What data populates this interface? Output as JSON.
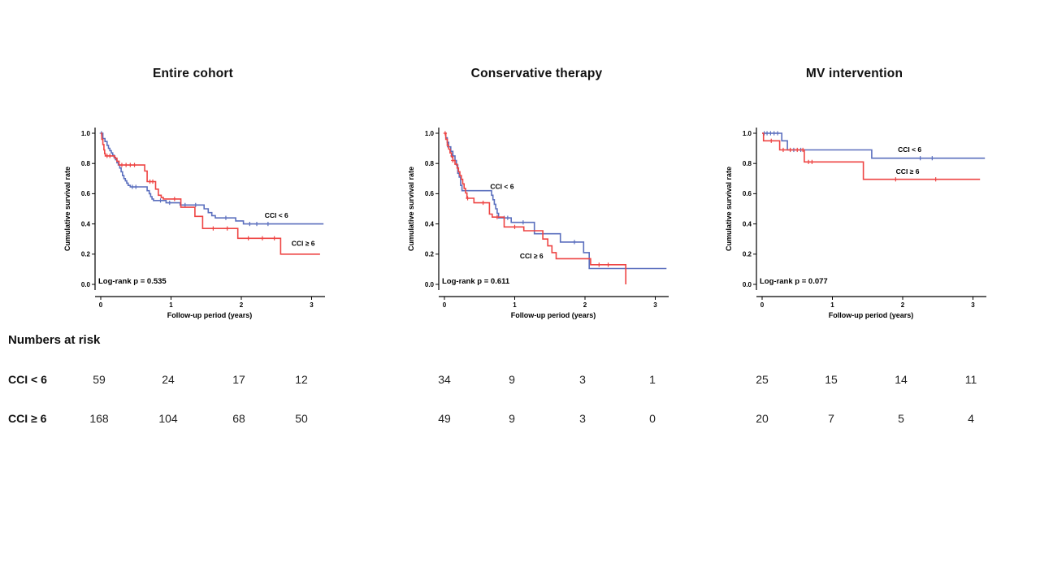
{
  "figure": {
    "background": "#ffffff",
    "ylabel": "Cumulative survival rate",
    "xlabel": "Follow-up period (years)",
    "x_tick_labels": [
      "0",
      "1",
      "2",
      "3"
    ],
    "y_tick_labels": [
      "0.0",
      "0.2",
      "0.4",
      "0.6",
      "0.8",
      "1.0"
    ],
    "colors": {
      "cci_lt6": "#5B6FBE",
      "cci_ge6": "#EE4443",
      "axis": "#000000"
    }
  },
  "chart_data": [
    {
      "type": "line",
      "subtype": "kaplan-meier-step",
      "title": "Entire cohort",
      "xlabel": "Follow-up period (years)",
      "ylabel": "Cumulative survival rate",
      "xlim": [
        0,
        3.2
      ],
      "ylim": [
        0.0,
        1.0
      ],
      "x_ticks": [
        0,
        1,
        2,
        3
      ],
      "y_ticks": [
        0.0,
        0.2,
        0.4,
        0.6,
        0.8,
        1.0
      ],
      "annotation": "Log-rank p = 0.535",
      "legend_position": "inline-right",
      "grid": false,
      "series": [
        {
          "name": "CCI < 6",
          "color": "#5B6FBE",
          "label_pos": [
            2.5,
            0.455
          ],
          "steps": [
            [
              0,
              1.0
            ],
            [
              0.03,
              0.965
            ],
            [
              0.06,
              0.945
            ],
            [
              0.09,
              0.92
            ],
            [
              0.11,
              0.9
            ],
            [
              0.13,
              0.885
            ],
            [
              0.15,
              0.87
            ],
            [
              0.17,
              0.855
            ],
            [
              0.19,
              0.84
            ],
            [
              0.21,
              0.825
            ],
            [
              0.23,
              0.805
            ],
            [
              0.25,
              0.79
            ],
            [
              0.27,
              0.77
            ],
            [
              0.29,
              0.745
            ],
            [
              0.31,
              0.72
            ],
            [
              0.33,
              0.7
            ],
            [
              0.35,
              0.685
            ],
            [
              0.37,
              0.67
            ],
            [
              0.39,
              0.655
            ],
            [
              0.42,
              0.645
            ],
            [
              0.66,
              0.62
            ],
            [
              0.69,
              0.6
            ],
            [
              0.71,
              0.58
            ],
            [
              0.73,
              0.565
            ],
            [
              0.75,
              0.555
            ],
            [
              0.93,
              0.54
            ],
            [
              1.13,
              0.525
            ],
            [
              1.47,
              0.5
            ],
            [
              1.53,
              0.475
            ],
            [
              1.58,
              0.455
            ],
            [
              1.63,
              0.44
            ],
            [
              1.92,
              0.42
            ],
            [
              2.03,
              0.4
            ],
            [
              3.17,
              0.4
            ]
          ],
          "censors": [
            [
              0.01,
              1.0
            ],
            [
              0.45,
              0.645
            ],
            [
              0.5,
              0.645
            ],
            [
              0.85,
              0.555
            ],
            [
              0.98,
              0.54
            ],
            [
              1.2,
              0.525
            ],
            [
              1.35,
              0.525
            ],
            [
              1.78,
              0.44
            ],
            [
              2.12,
              0.4
            ],
            [
              2.22,
              0.4
            ],
            [
              2.38,
              0.4
            ]
          ]
        },
        {
          "name": "CCI ≥ 6",
          "color": "#EE4443",
          "label_pos": [
            2.88,
            0.27
          ],
          "steps": [
            [
              0,
              1.0
            ],
            [
              0.015,
              0.96
            ],
            [
              0.03,
              0.925
            ],
            [
              0.045,
              0.89
            ],
            [
              0.055,
              0.865
            ],
            [
              0.065,
              0.85
            ],
            [
              0.2,
              0.835
            ],
            [
              0.23,
              0.815
            ],
            [
              0.26,
              0.79
            ],
            [
              0.625,
              0.75
            ],
            [
              0.66,
              0.68
            ],
            [
              0.78,
              0.63
            ],
            [
              0.82,
              0.59
            ],
            [
              0.86,
              0.575
            ],
            [
              0.89,
              0.565
            ],
            [
              1.14,
              0.51
            ],
            [
              1.34,
              0.45
            ],
            [
              1.45,
              0.37
            ],
            [
              1.95,
              0.305
            ],
            [
              2.56,
              0.2
            ],
            [
              3.12,
              0.2
            ]
          ],
          "censors": [
            [
              0.09,
              0.85
            ],
            [
              0.13,
              0.85
            ],
            [
              0.3,
              0.79
            ],
            [
              0.36,
              0.79
            ],
            [
              0.42,
              0.79
            ],
            [
              0.48,
              0.79
            ],
            [
              0.7,
              0.68
            ],
            [
              0.74,
              0.68
            ],
            [
              1.05,
              0.565
            ],
            [
              1.6,
              0.37
            ],
            [
              1.8,
              0.37
            ],
            [
              2.1,
              0.305
            ],
            [
              2.3,
              0.305
            ],
            [
              2.47,
              0.305
            ]
          ]
        }
      ]
    },
    {
      "type": "line",
      "subtype": "kaplan-meier-step",
      "title": "Conservative therapy",
      "xlabel": "Follow-up period (years)",
      "ylabel": "Cumulative survival rate",
      "xlim": [
        0,
        3.2
      ],
      "ylim": [
        0.0,
        1.0
      ],
      "x_ticks": [
        0,
        1,
        2,
        3
      ],
      "y_ticks": [
        0.0,
        0.2,
        0.4,
        0.6,
        0.8,
        1.0
      ],
      "annotation": "Log-rank p = 0.611",
      "legend_position": "inline",
      "grid": false,
      "series": [
        {
          "name": "CCI < 6",
          "color": "#5B6FBE",
          "label_pos": [
            0.82,
            0.645
          ],
          "steps": [
            [
              0,
              1.0
            ],
            [
              0.02,
              0.97
            ],
            [
              0.04,
              0.94
            ],
            [
              0.06,
              0.91
            ],
            [
              0.09,
              0.88
            ],
            [
              0.12,
              0.85
            ],
            [
              0.15,
              0.82
            ],
            [
              0.17,
              0.79
            ],
            [
              0.19,
              0.735
            ],
            [
              0.21,
              0.71
            ],
            [
              0.23,
              0.655
            ],
            [
              0.25,
              0.62
            ],
            [
              0.67,
              0.59
            ],
            [
              0.69,
              0.56
            ],
            [
              0.71,
              0.53
            ],
            [
              0.73,
              0.5
            ],
            [
              0.75,
              0.47
            ],
            [
              0.77,
              0.44
            ],
            [
              0.95,
              0.41
            ],
            [
              1.28,
              0.335
            ],
            [
              1.65,
              0.28
            ],
            [
              1.98,
              0.21
            ],
            [
              2.06,
              0.105
            ],
            [
              3.16,
              0.105
            ]
          ],
          "censors": [
            [
              0.06,
              0.91
            ],
            [
              0.11,
              0.85
            ],
            [
              0.85,
              0.44
            ],
            [
              0.9,
              0.44
            ],
            [
              1.12,
              0.41
            ],
            [
              1.85,
              0.28
            ]
          ]
        },
        {
          "name": "CCI ≥ 6",
          "color": "#EE4443",
          "label_pos": [
            1.24,
            0.185
          ],
          "steps": [
            [
              0,
              1.0
            ],
            [
              0.02,
              0.96
            ],
            [
              0.04,
              0.92
            ],
            [
              0.06,
              0.895
            ],
            [
              0.08,
              0.87
            ],
            [
              0.1,
              0.845
            ],
            [
              0.12,
              0.82
            ],
            [
              0.15,
              0.795
            ],
            [
              0.18,
              0.77
            ],
            [
              0.2,
              0.745
            ],
            [
              0.22,
              0.72
            ],
            [
              0.24,
              0.695
            ],
            [
              0.26,
              0.665
            ],
            [
              0.28,
              0.635
            ],
            [
              0.3,
              0.605
            ],
            [
              0.32,
              0.57
            ],
            [
              0.42,
              0.54
            ],
            [
              0.64,
              0.465
            ],
            [
              0.68,
              0.445
            ],
            [
              0.85,
              0.38
            ],
            [
              1.13,
              0.355
            ],
            [
              1.4,
              0.3
            ],
            [
              1.47,
              0.255
            ],
            [
              1.53,
              0.21
            ],
            [
              1.59,
              0.17
            ],
            [
              2.08,
              0.13
            ],
            [
              2.58,
              0.0
            ]
          ],
          "censors": [
            [
              0.01,
              1.0
            ],
            [
              0.12,
              0.82
            ],
            [
              0.33,
              0.57
            ],
            [
              0.55,
              0.54
            ],
            [
              0.75,
              0.445
            ],
            [
              1.0,
              0.38
            ],
            [
              2.2,
              0.13
            ],
            [
              2.33,
              0.13
            ]
          ]
        }
      ]
    },
    {
      "type": "line",
      "subtype": "kaplan-meier-step",
      "title": "MV intervention",
      "xlabel": "Follow-up period (years)",
      "ylabel": "Cumulative survival rate",
      "xlim": [
        0,
        3.2
      ],
      "ylim": [
        0.0,
        1.0
      ],
      "x_ticks": [
        0,
        1,
        2,
        3
      ],
      "y_ticks": [
        0.0,
        0.2,
        0.4,
        0.6,
        0.8,
        1.0
      ],
      "annotation": "Log-rank p = 0.077",
      "legend_position": "inline-right",
      "grid": false,
      "series": [
        {
          "name": "CCI < 6",
          "color": "#5B6FBE",
          "label_pos": [
            2.1,
            0.89
          ],
          "steps": [
            [
              0,
              1.0
            ],
            [
              0.28,
              0.95
            ],
            [
              0.36,
              0.89
            ],
            [
              1.56,
              0.835
            ],
            [
              3.17,
              0.835
            ]
          ],
          "censors": [
            [
              0.03,
              1.0
            ],
            [
              0.07,
              1.0
            ],
            [
              0.12,
              1.0
            ],
            [
              0.17,
              1.0
            ],
            [
              0.22,
              1.0
            ],
            [
              0.45,
              0.89
            ],
            [
              0.55,
              0.89
            ],
            [
              2.25,
              0.835
            ],
            [
              2.42,
              0.835
            ]
          ]
        },
        {
          "name": "CCI ≥ 6",
          "color": "#EE4443",
          "label_pos": [
            2.07,
            0.745
          ],
          "steps": [
            [
              0,
              1.0
            ],
            [
              0.02,
              0.95
            ],
            [
              0.25,
              0.89
            ],
            [
              0.6,
              0.81
            ],
            [
              1.44,
              0.695
            ],
            [
              3.1,
              0.695
            ]
          ],
          "censors": [
            [
              0.13,
              0.95
            ],
            [
              0.3,
              0.89
            ],
            [
              0.4,
              0.89
            ],
            [
              0.5,
              0.89
            ],
            [
              0.58,
              0.89
            ],
            [
              0.66,
              0.81
            ],
            [
              0.71,
              0.81
            ],
            [
              1.9,
              0.695
            ],
            [
              2.47,
              0.695
            ]
          ]
        }
      ]
    }
  ],
  "risk_table": {
    "heading": "Numbers at risk",
    "time_points": [
      0,
      1,
      2,
      3
    ],
    "rows": [
      {
        "label": "CCI < 6",
        "values": [
          [
            59,
            24,
            17,
            12
          ],
          [
            34,
            9,
            3,
            1
          ],
          [
            25,
            15,
            14,
            11
          ]
        ]
      },
      {
        "label": "CCI ≥ 6",
        "values": [
          [
            168,
            104,
            68,
            50
          ],
          [
            49,
            9,
            3,
            0
          ],
          [
            20,
            7,
            5,
            4
          ]
        ]
      }
    ]
  }
}
